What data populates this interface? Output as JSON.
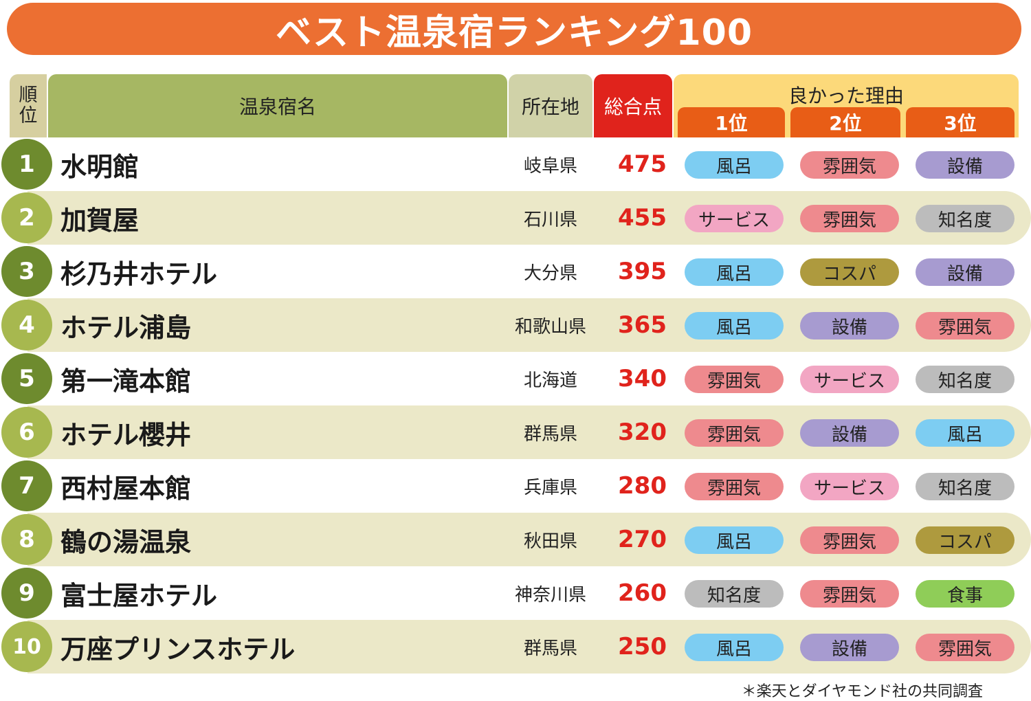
{
  "title": "ベスト温泉宿ランキング100",
  "headers": {
    "rank_top": "順",
    "rank_bottom": "位",
    "name": "温泉宿名",
    "location": "所在地",
    "score": "総合点",
    "reasons": "良かった理由",
    "reason_1": "1位",
    "reason_2": "2位",
    "reason_3": "3位"
  },
  "colors": {
    "風呂": "#7dcdf2",
    "雰囲気": "#ee8a8e",
    "設備": "#a79bd0",
    "サービス": "#f2a6c3",
    "知名度": "#bcbcbc",
    "コスパ": "#ae9a3e",
    "食事": "#8fcd58"
  },
  "rows": [
    {
      "rank": "1",
      "name": "水明館",
      "pref": "岐阜県",
      "score": "475",
      "reasons": [
        "風呂",
        "雰囲気",
        "設備"
      ]
    },
    {
      "rank": "2",
      "name": "加賀屋",
      "pref": "石川県",
      "score": "455",
      "reasons": [
        "サービス",
        "雰囲気",
        "知名度"
      ]
    },
    {
      "rank": "3",
      "name": "杉乃井ホテル",
      "pref": "大分県",
      "score": "395",
      "reasons": [
        "風呂",
        "コスパ",
        "設備"
      ]
    },
    {
      "rank": "4",
      "name": "ホテル浦島",
      "pref": "和歌山県",
      "score": "365",
      "reasons": [
        "風呂",
        "設備",
        "雰囲気"
      ]
    },
    {
      "rank": "5",
      "name": "第一滝本館",
      "pref": "北海道",
      "score": "340",
      "reasons": [
        "雰囲気",
        "サービス",
        "知名度"
      ]
    },
    {
      "rank": "6",
      "name": "ホテル櫻井",
      "pref": "群馬県",
      "score": "320",
      "reasons": [
        "雰囲気",
        "設備",
        "風呂"
      ]
    },
    {
      "rank": "7",
      "name": "西村屋本館",
      "pref": "兵庫県",
      "score": "280",
      "reasons": [
        "雰囲気",
        "サービス",
        "知名度"
      ]
    },
    {
      "rank": "8",
      "name": "鶴の湯温泉",
      "pref": "秋田県",
      "score": "270",
      "reasons": [
        "風呂",
        "雰囲気",
        "コスパ"
      ]
    },
    {
      "rank": "9",
      "name": "富士屋ホテル",
      "pref": "神奈川県",
      "score": "260",
      "reasons": [
        "知名度",
        "雰囲気",
        "食事"
      ]
    },
    {
      "rank": "10",
      "name": "万座プリンスホテル",
      "pref": "群馬県",
      "score": "250",
      "reasons": [
        "風呂",
        "設備",
        "雰囲気"
      ]
    }
  ],
  "footnote": "＊楽天とダイヤモンド社の共同調査"
}
